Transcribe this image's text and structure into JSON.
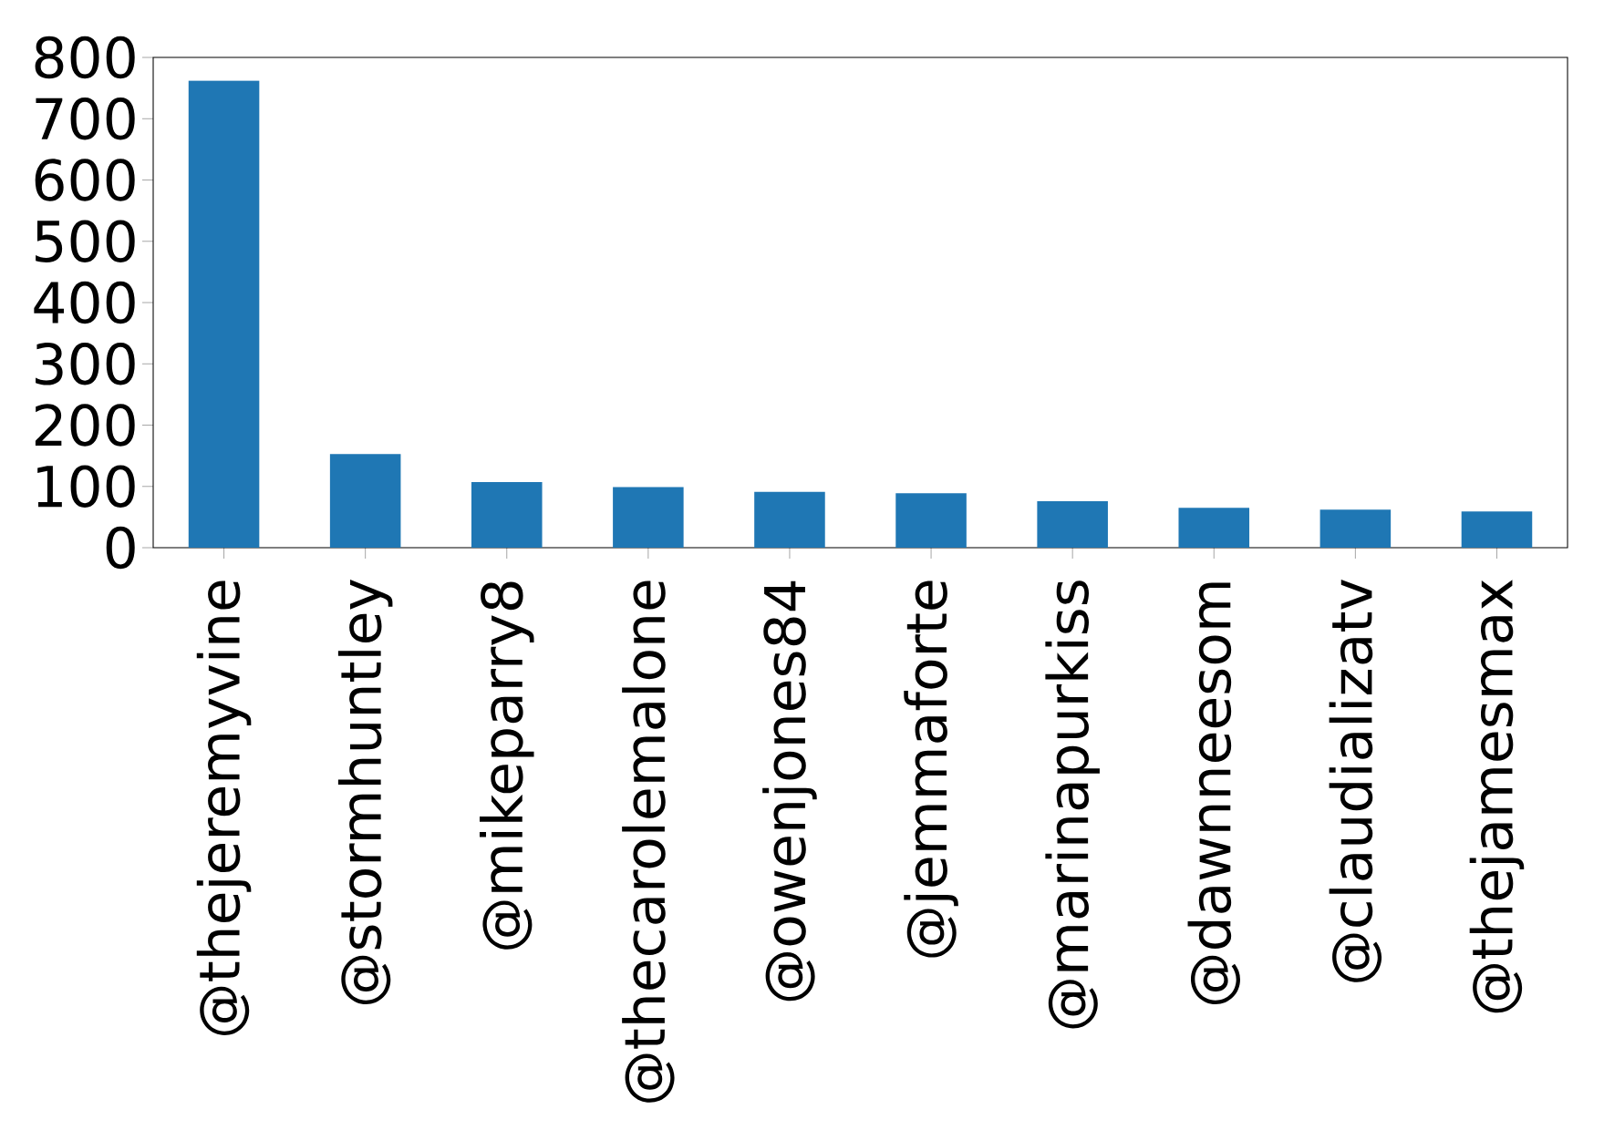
{
  "chart_data": {
    "type": "bar",
    "categories": [
      "@thejeremyvine",
      "@stormhuntley",
      "@mikeparry8",
      "@thecarolemalone",
      "@owenjones84",
      "@jemmaforte",
      "@marinapurkiss",
      "@dawnneesom",
      "@claudializatv",
      "@thejamesmax"
    ],
    "values": [
      762,
      153,
      107,
      99,
      91,
      89,
      76,
      65,
      62,
      59
    ],
    "color": "#1f77b4",
    "ylim": [
      0,
      800
    ],
    "yticks": [
      0,
      100,
      200,
      300,
      400,
      500,
      600,
      700,
      800
    ]
  }
}
